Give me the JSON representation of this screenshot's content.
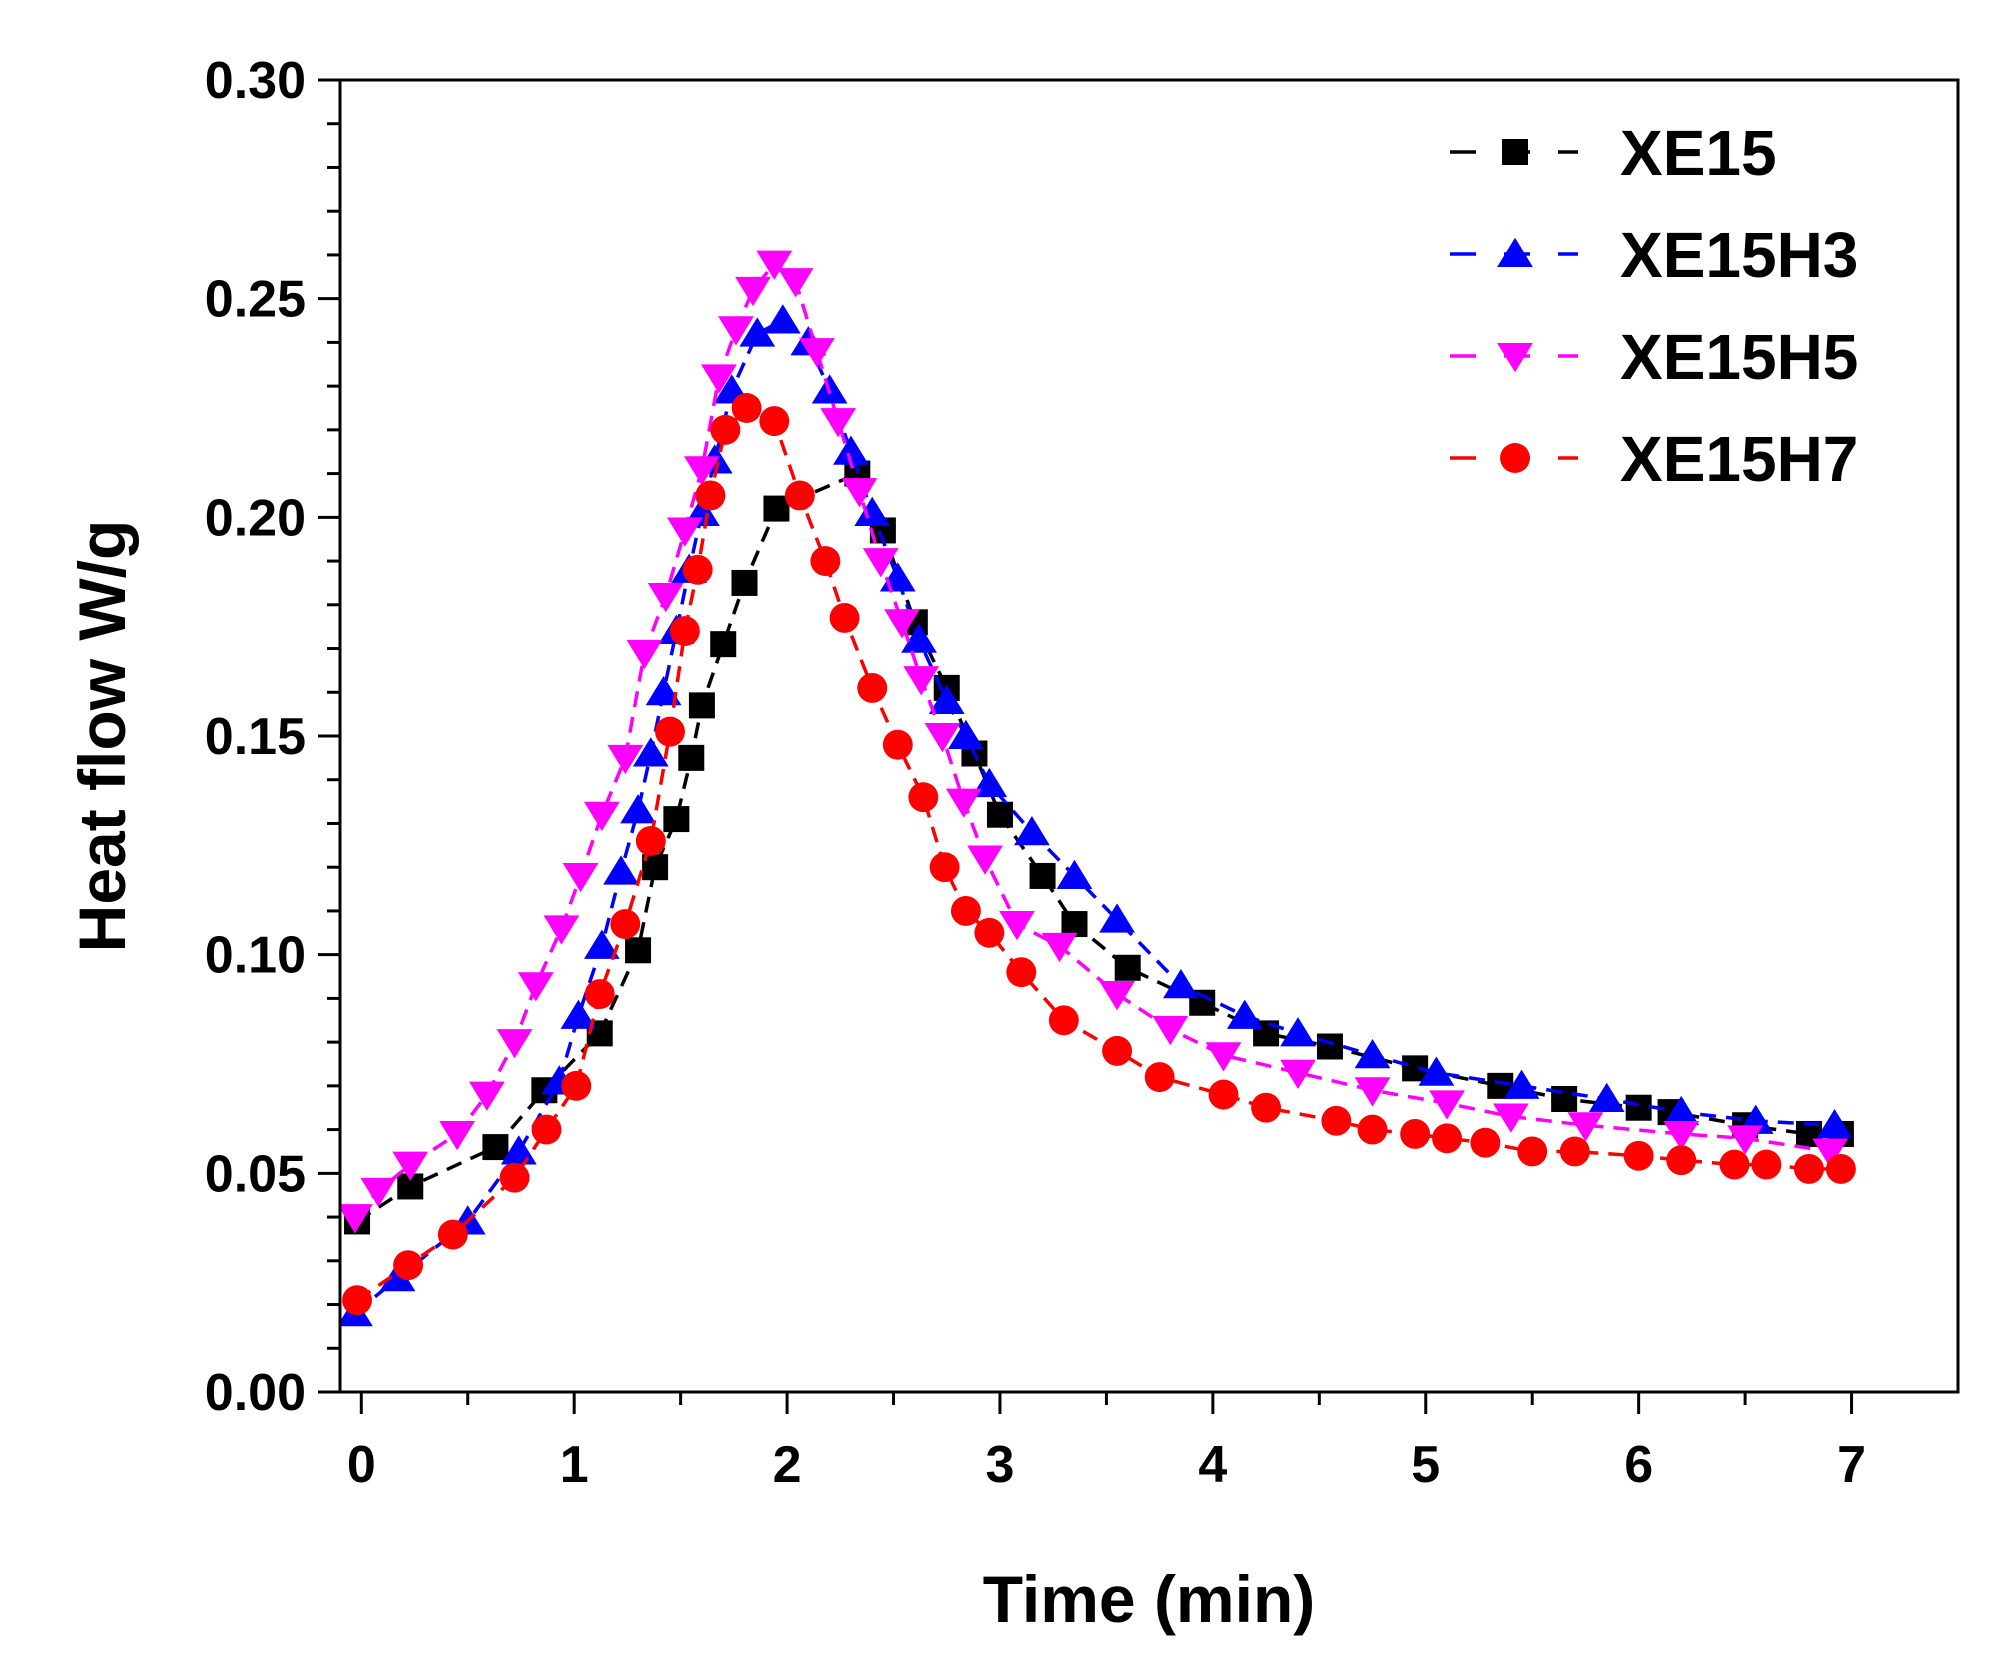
{
  "chart_data": {
    "type": "line",
    "title": "",
    "xlabel": "Time (min)",
    "ylabel": "Heat flow W/g",
    "xlim": [
      -0.1,
      7.5
    ],
    "ylim": [
      0.0,
      0.3
    ],
    "xticks": [
      0,
      1,
      2,
      3,
      4,
      5,
      6,
      7
    ],
    "xtick_labels": [
      "0",
      "1",
      "2",
      "3",
      "4",
      "5",
      "6",
      "7"
    ],
    "yticks": [
      0.0,
      0.05,
      0.1,
      0.15,
      0.2,
      0.25,
      0.3
    ],
    "ytick_labels": [
      "0.00",
      "0.05",
      "0.10",
      "0.15",
      "0.20",
      "0.25",
      "0.30"
    ],
    "grid": false,
    "legend_position": "top-right",
    "series": [
      {
        "name": "XE15",
        "color": "#000000",
        "marker": "square",
        "x": [
          -0.02,
          0.23,
          0.63,
          0.86,
          1.12,
          1.3,
          1.38,
          1.48,
          1.55,
          1.6,
          1.7,
          1.8,
          1.95,
          2.33,
          2.45,
          2.6,
          2.75,
          2.88,
          3.0,
          3.2,
          3.35,
          3.6,
          3.95,
          4.25,
          4.55,
          4.95,
          5.35,
          5.65,
          6.0,
          6.15,
          6.5,
          6.8,
          6.95
        ],
        "y": [
          0.039,
          0.047,
          0.056,
          0.069,
          0.082,
          0.101,
          0.12,
          0.131,
          0.145,
          0.157,
          0.171,
          0.185,
          0.202,
          0.21,
          0.197,
          0.176,
          0.161,
          0.146,
          0.132,
          0.118,
          0.107,
          0.097,
          0.089,
          0.082,
          0.079,
          0.074,
          0.07,
          0.067,
          0.065,
          0.064,
          0.061,
          0.059,
          0.059
        ]
      },
      {
        "name": "XE15H3",
        "color": "#0000ff",
        "marker": "triangle-up",
        "x": [
          -0.03,
          0.17,
          0.5,
          0.74,
          0.93,
          1.02,
          1.13,
          1.22,
          1.3,
          1.36,
          1.42,
          1.48,
          1.54,
          1.6,
          1.66,
          1.74,
          1.86,
          1.98,
          2.1,
          2.2,
          2.3,
          2.4,
          2.52,
          2.62,
          2.75,
          2.84,
          2.95,
          3.15,
          3.35,
          3.55,
          3.85,
          4.15,
          4.4,
          4.75,
          5.05,
          5.45,
          5.85,
          6.2,
          6.55,
          6.92
        ],
        "y": [
          0.018,
          0.026,
          0.039,
          0.055,
          0.071,
          0.086,
          0.102,
          0.119,
          0.133,
          0.146,
          0.16,
          0.174,
          0.188,
          0.201,
          0.213,
          0.229,
          0.242,
          0.245,
          0.24,
          0.229,
          0.215,
          0.201,
          0.186,
          0.172,
          0.158,
          0.15,
          0.139,
          0.128,
          0.118,
          0.108,
          0.093,
          0.086,
          0.082,
          0.077,
          0.073,
          0.07,
          0.067,
          0.064,
          0.062,
          0.061
        ]
      },
      {
        "name": "XE15H5",
        "color": "#ff00ff",
        "marker": "triangle-down",
        "x": [
          -0.03,
          0.08,
          0.23,
          0.45,
          0.59,
          0.72,
          0.82,
          0.94,
          1.03,
          1.13,
          1.24,
          1.33,
          1.43,
          1.52,
          1.6,
          1.68,
          1.76,
          1.84,
          1.94,
          2.04,
          2.14,
          2.24,
          2.34,
          2.44,
          2.54,
          2.63,
          2.73,
          2.83,
          2.93,
          3.08,
          3.28,
          3.55,
          3.8,
          4.05,
          4.4,
          4.75,
          5.1,
          5.4,
          5.75,
          6.2,
          6.5,
          6.9
        ],
        "y": [
          0.04,
          0.046,
          0.052,
          0.059,
          0.068,
          0.08,
          0.093,
          0.106,
          0.118,
          0.132,
          0.145,
          0.169,
          0.182,
          0.197,
          0.211,
          0.232,
          0.243,
          0.252,
          0.258,
          0.254,
          0.238,
          0.222,
          0.206,
          0.19,
          0.176,
          0.163,
          0.15,
          0.135,
          0.122,
          0.107,
          0.102,
          0.091,
          0.083,
          0.077,
          0.073,
          0.069,
          0.066,
          0.063,
          0.061,
          0.059,
          0.058,
          0.055
        ]
      },
      {
        "name": "XE15H7",
        "color": "#ff0000",
        "marker": "circle",
        "x": [
          -0.02,
          0.22,
          0.43,
          0.72,
          0.87,
          1.01,
          1.12,
          1.24,
          1.36,
          1.45,
          1.52,
          1.58,
          1.64,
          1.71,
          1.81,
          1.94,
          2.06,
          2.18,
          2.27,
          2.4,
          2.52,
          2.64,
          2.74,
          2.84,
          2.95,
          3.1,
          3.3,
          3.55,
          3.75,
          4.05,
          4.25,
          4.58,
          4.75,
          4.95,
          5.1,
          5.28,
          5.5,
          5.7,
          6.0,
          6.2,
          6.45,
          6.6,
          6.8,
          6.95
        ],
        "y": [
          0.021,
          0.029,
          0.036,
          0.049,
          0.06,
          0.07,
          0.091,
          0.107,
          0.126,
          0.151,
          0.174,
          0.188,
          0.205,
          0.22,
          0.225,
          0.222,
          0.205,
          0.19,
          0.177,
          0.161,
          0.148,
          0.136,
          0.12,
          0.11,
          0.105,
          0.096,
          0.085,
          0.078,
          0.072,
          0.068,
          0.065,
          0.062,
          0.06,
          0.059,
          0.058,
          0.057,
          0.055,
          0.055,
          0.054,
          0.053,
          0.052,
          0.052,
          0.051,
          0.051
        ]
      }
    ]
  }
}
